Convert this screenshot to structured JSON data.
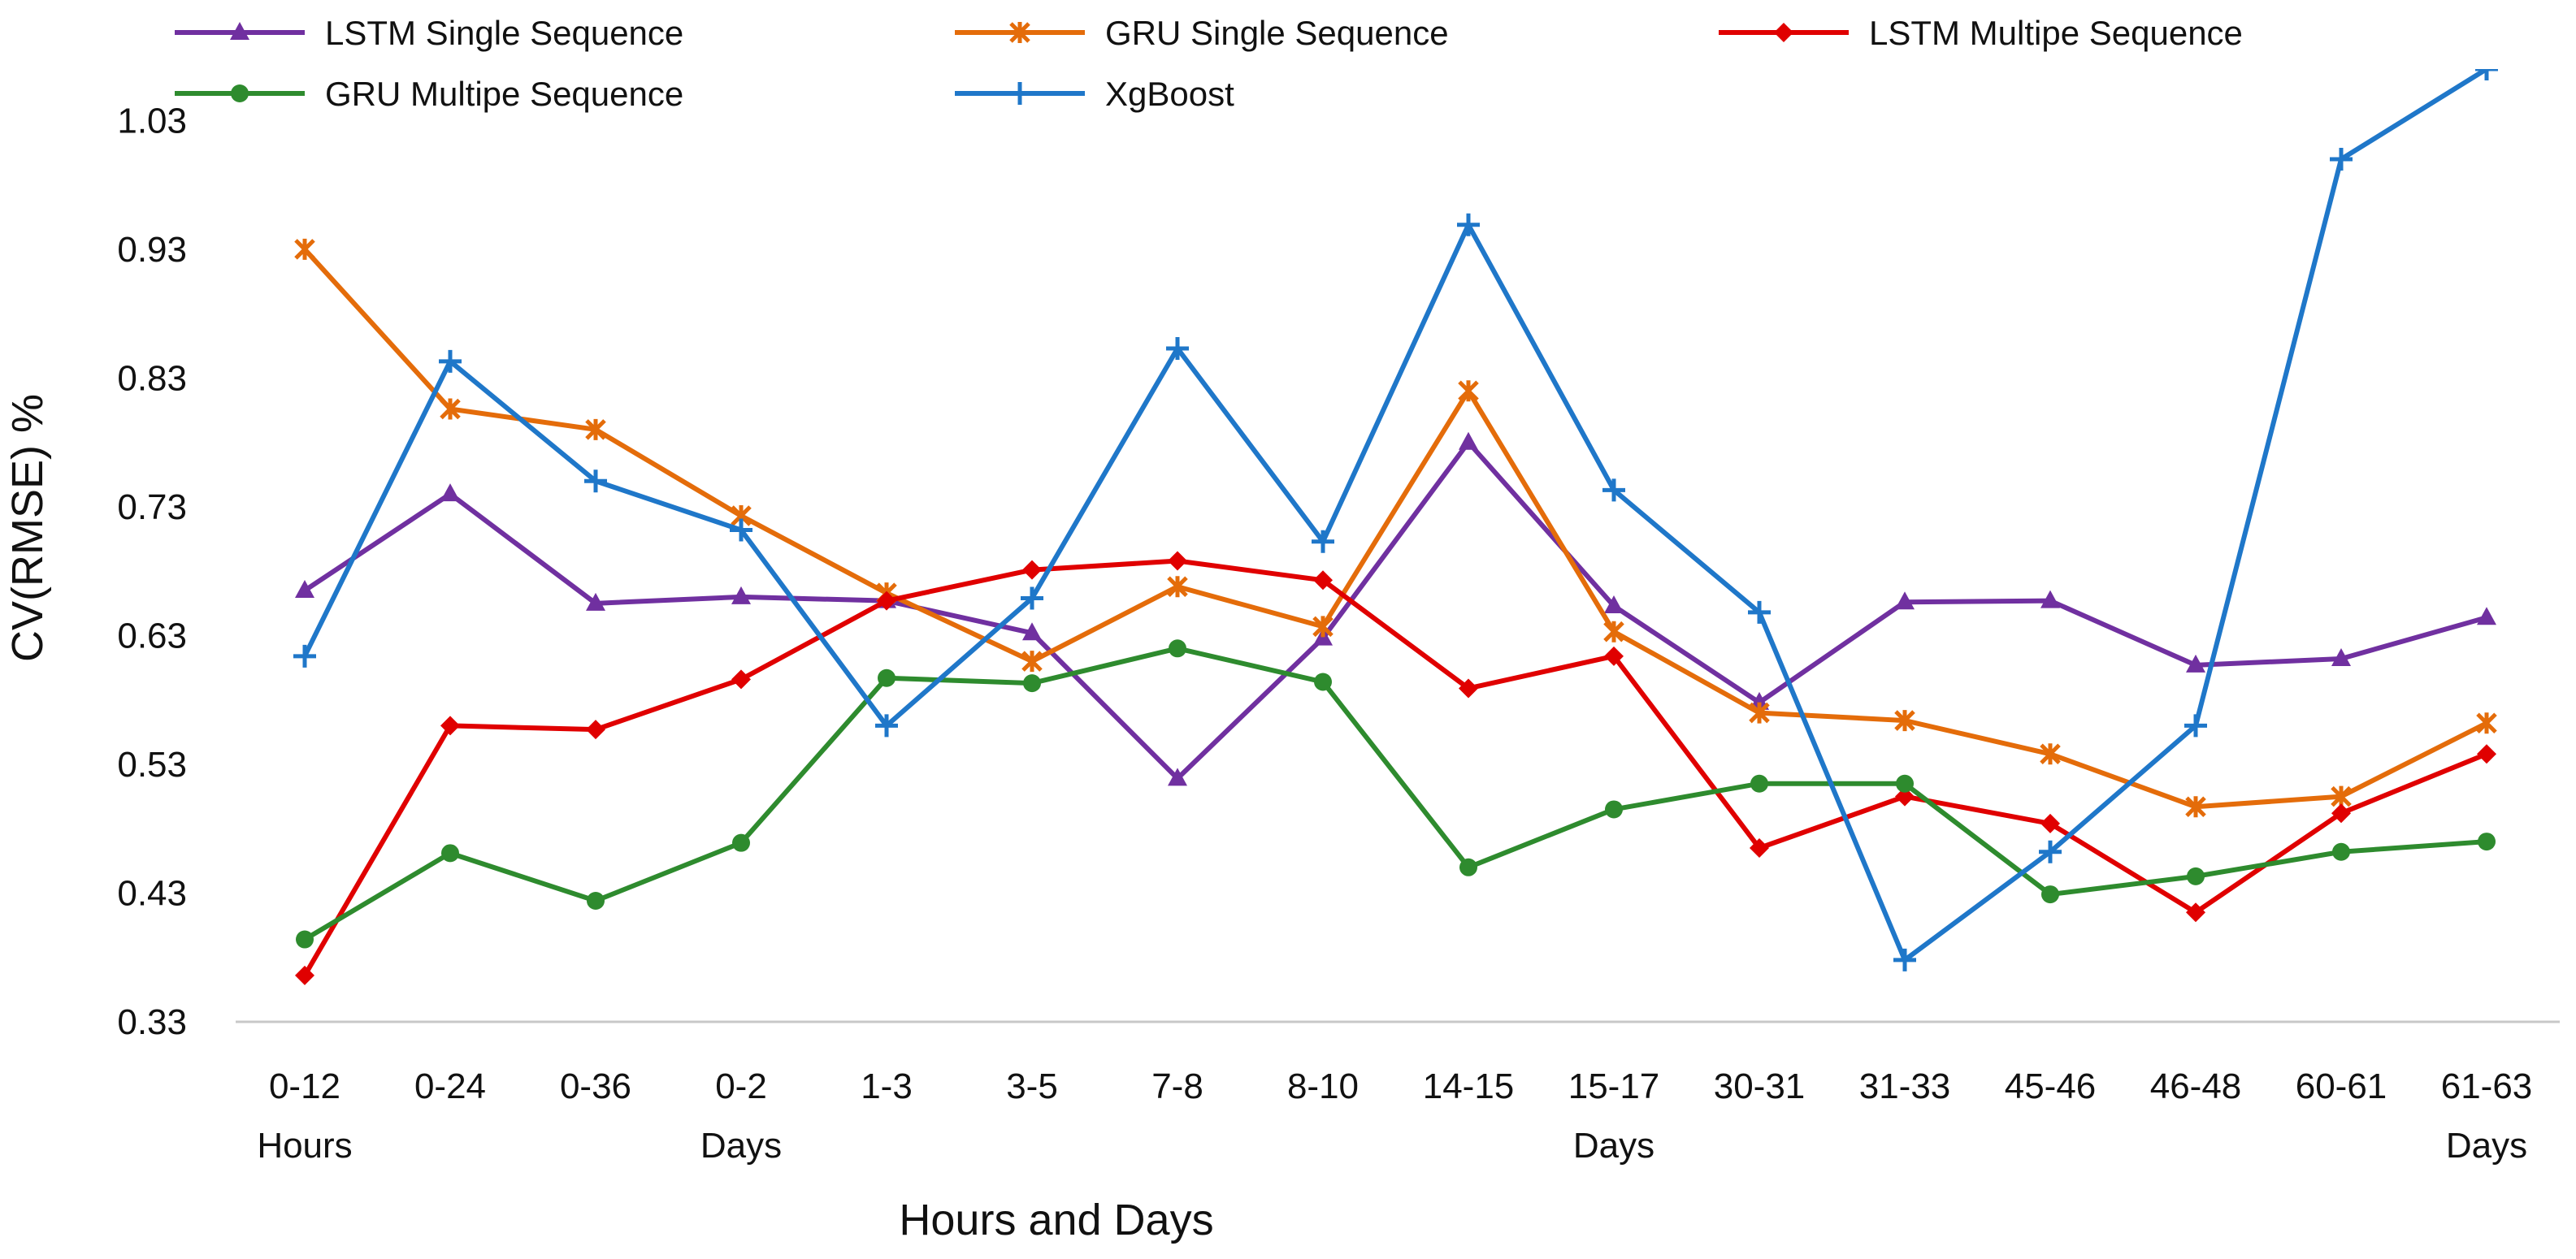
{
  "chart_data": {
    "type": "line",
    "title": "",
    "xlabel": "Hours and Days",
    "ylabel": "CV(RMSE) %",
    "ylim": [
      0.33,
      1.07
    ],
    "yticks": [
      "0.33",
      "0.43",
      "0.53",
      "0.63",
      "0.73",
      "0.83",
      "0.93",
      "1.03"
    ],
    "categories": [
      "0-12",
      "0-24",
      "0-36",
      "0-2",
      "1-3",
      "3-5",
      "7-8",
      "8-10",
      "14-15",
      "15-17",
      "30-31",
      "31-33",
      "45-46",
      "46-48",
      "60-61",
      "61-63"
    ],
    "category_sublabels": [
      "Hours",
      "",
      "",
      "Days",
      "",
      "",
      "",
      "",
      "",
      "Days",
      "",
      "",
      "",
      "",
      "",
      "Days"
    ],
    "grid": false,
    "legend_position": "top",
    "series": [
      {
        "name": "LSTM Single Sequence",
        "color": "#7030A0",
        "marker": "triangle",
        "values": [
          0.665,
          0.74,
          0.655,
          0.66,
          0.657,
          0.632,
          0.519,
          0.628,
          0.78,
          0.653,
          0.578,
          0.656,
          0.657,
          0.607,
          0.612,
          0.644
        ]
      },
      {
        "name": "GRU Single Sequence",
        "color": "#E46C0A",
        "marker": "x",
        "values": [
          0.93,
          0.806,
          0.79,
          0.723,
          0.663,
          0.61,
          0.668,
          0.637,
          0.82,
          0.633,
          0.57,
          0.564,
          0.538,
          0.497,
          0.505,
          0.562
        ]
      },
      {
        "name": "LSTM Multipe Sequence",
        "color": "#E00000",
        "marker": "diamond",
        "values": [
          0.366,
          0.56,
          0.557,
          0.596,
          0.657,
          0.681,
          0.688,
          0.673,
          0.589,
          0.614,
          0.465,
          0.505,
          0.484,
          0.415,
          0.492,
          0.538
        ]
      },
      {
        "name": "GRU Multipe Sequence",
        "color": "#2E8B2E",
        "marker": "circle",
        "values": [
          0.394,
          0.461,
          0.424,
          0.469,
          0.597,
          0.593,
          0.62,
          0.594,
          0.45,
          0.495,
          0.515,
          0.515,
          0.429,
          0.443,
          0.462,
          0.47
        ]
      },
      {
        "name": "XgBoost",
        "color": "#1F77C9",
        "marker": "plus",
        "values": [
          0.614,
          0.843,
          0.75,
          0.712,
          0.56,
          0.659,
          0.853,
          0.703,
          0.949,
          0.743,
          0.648,
          0.378,
          0.462,
          0.56,
          1.0,
          1.07
        ]
      }
    ]
  }
}
